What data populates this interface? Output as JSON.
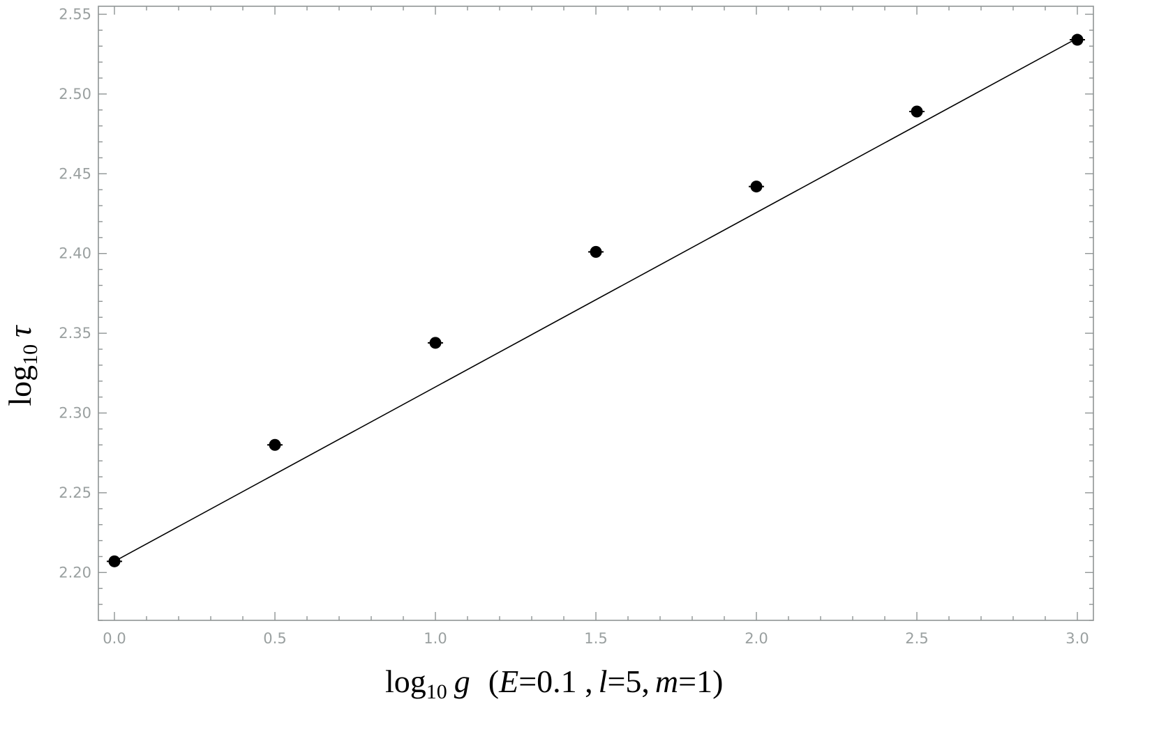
{
  "chart_data": {
    "type": "scatter",
    "xlim": [
      -0.05,
      3.05
    ],
    "ylim": [
      2.17,
      2.555
    ],
    "x_ticks_major": [
      0.0,
      0.5,
      1.0,
      1.5,
      2.0,
      2.5,
      3.0
    ],
    "x_tick_labels": [
      "0.0",
      "0.5",
      "1.0",
      "1.5",
      "2.0",
      "2.5",
      "3.0"
    ],
    "x_ticks_minor_step": 0.1,
    "y_ticks_major": [
      2.2,
      2.25,
      2.3,
      2.35,
      2.4,
      2.45,
      2.5,
      2.55
    ],
    "y_tick_labels": [
      "2.20",
      "2.25",
      "2.30",
      "2.35",
      "2.40",
      "2.45",
      "2.50",
      "2.55"
    ],
    "y_ticks_minor_step": 0.01,
    "grid": false,
    "legend": "none",
    "xlabel": {
      "main": "log",
      "sub": "10",
      "var": "g",
      "params_open": "(",
      "e_var": "E",
      "e_val": "=0.1 ,",
      "l_var": "l",
      "l_val": "=5,",
      "m_var": "m",
      "m_val": "=1)"
    },
    "ylabel": {
      "main": "log",
      "sub": "10",
      "var": "τ"
    },
    "series": [
      {
        "kind": "points",
        "x": [
          0.0,
          0.5,
          1.0,
          1.5,
          2.0,
          2.5,
          3.0
        ],
        "y": [
          2.207,
          2.28,
          2.344,
          2.401,
          2.442,
          2.489,
          2.534
        ]
      },
      {
        "kind": "line",
        "x": [
          0.0,
          3.0
        ],
        "y": [
          2.207,
          2.535
        ]
      }
    ],
    "colors": {
      "points": "#000000",
      "line": "#000000",
      "frame": "#8f9494",
      "tick_labels": "#9aa0a0"
    }
  }
}
